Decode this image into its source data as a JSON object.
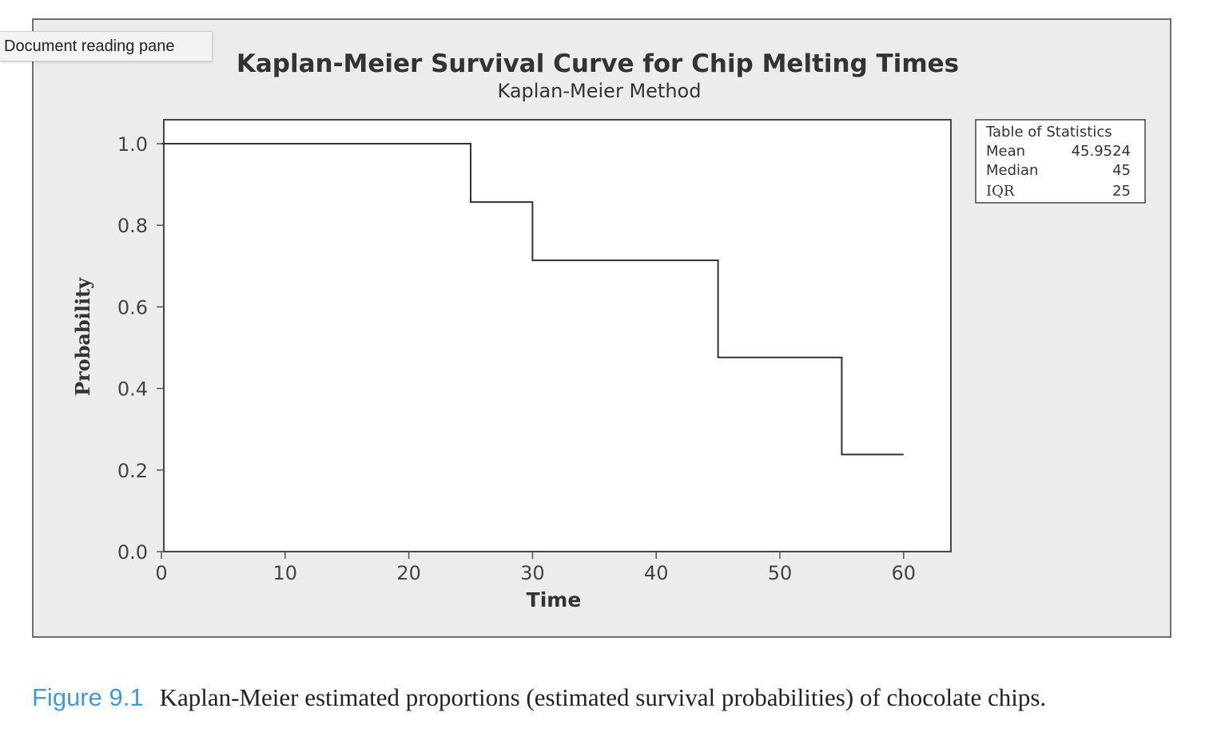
{
  "tooltip": {
    "text": "Document reading pane"
  },
  "chart_data": {
    "type": "line",
    "step": true,
    "title": "Kaplan-Meier Survival Curve for Chip Melting Times",
    "subtitle": "Kaplan-Meier Method",
    "xlabel": "Time",
    "ylabel": "Probability",
    "xlim": [
      0,
      63
    ],
    "ylim": [
      0,
      1.06
    ],
    "x_ticks": [
      "0",
      "10",
      "20",
      "30",
      "40",
      "50",
      "60"
    ],
    "x_tick_values": [
      0,
      10,
      20,
      30,
      40,
      50,
      60
    ],
    "y_ticks": [
      "0.0",
      "0.2",
      "0.4",
      "0.6",
      "0.8",
      "1.0"
    ],
    "y_tick_values": [
      0,
      0.2,
      0.4,
      0.6,
      0.8,
      1.0
    ],
    "series": [
      {
        "x": [
          0,
          25,
          25,
          30,
          30,
          45,
          45,
          55,
          55,
          60
        ],
        "y": [
          1.0,
          1.0,
          0.857,
          0.857,
          0.714,
          0.714,
          0.476,
          0.476,
          0.238,
          0.238
        ]
      }
    ],
    "grid": false,
    "stats_table": {
      "title": "Table of Statistics",
      "rows": [
        {
          "label": "Mean",
          "value": "45.9524"
        },
        {
          "label": "Median",
          "value": "45"
        },
        {
          "label": "IQR",
          "value": "25"
        }
      ]
    }
  },
  "caption": {
    "label": "Figure 9.1",
    "text": "Kaplan-Meier estimated proportions (estimated survival probabilities) of chocolate chips."
  },
  "colors": {
    "frame_bg": "#ececec",
    "plot_bg": "#ffffff",
    "line": "#333333",
    "caption_label": "#3d9bd6"
  }
}
